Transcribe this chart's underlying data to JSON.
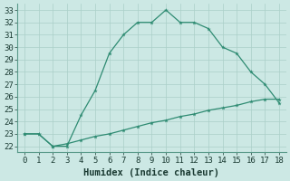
{
  "xlabel": "Humidex (Indice chaleur)",
  "xlim": [
    -0.5,
    18.5
  ],
  "ylim": [
    21.5,
    33.5
  ],
  "yticks": [
    22,
    23,
    24,
    25,
    26,
    27,
    28,
    29,
    30,
    31,
    32,
    33
  ],
  "xticks": [
    0,
    1,
    2,
    3,
    4,
    5,
    6,
    7,
    8,
    9,
    10,
    11,
    12,
    13,
    14,
    15,
    16,
    17,
    18
  ],
  "line1_x": [
    0,
    1,
    2,
    3,
    4,
    5,
    6,
    7,
    8,
    9,
    10,
    11,
    12,
    13,
    14,
    15,
    16,
    17,
    18
  ],
  "line1_y": [
    23.0,
    23.0,
    22.0,
    22.0,
    24.5,
    26.5,
    29.5,
    31.0,
    32.0,
    32.0,
    33.0,
    32.0,
    32.0,
    31.5,
    30.0,
    29.5,
    28.0,
    27.0,
    25.5
  ],
  "line2_x": [
    0,
    1,
    2,
    3,
    4,
    5,
    6,
    7,
    8,
    9,
    10,
    11,
    12,
    13,
    14,
    15,
    16,
    17,
    18
  ],
  "line2_y": [
    23.0,
    23.0,
    22.0,
    22.2,
    22.5,
    22.8,
    23.0,
    23.3,
    23.6,
    23.9,
    24.1,
    24.4,
    24.6,
    24.9,
    25.1,
    25.3,
    25.6,
    25.8,
    25.8
  ],
  "line_color": "#2e8b72",
  "bg_color": "#cce8e4",
  "grid_color": "#aacfc8",
  "label_fontsize": 7.5,
  "tick_fontsize": 6.5
}
